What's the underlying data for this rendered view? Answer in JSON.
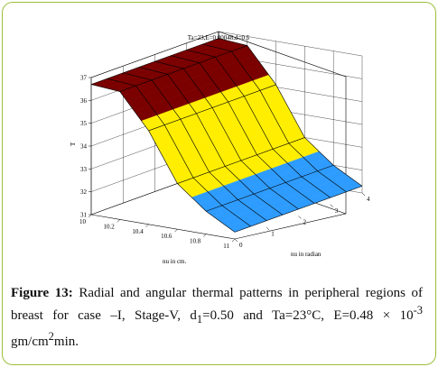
{
  "chart_data": {
    "type": "surface3d",
    "title": "Ta=23,E=0.00048,d=0.5",
    "zlabel": "T",
    "xlabel": "nu in cm.",
    "ylabel": "nu in radian",
    "x_ticks": [
      "10",
      "10.2",
      "10.4",
      "10.6",
      "10.8",
      "11"
    ],
    "y_ticks": [
      "0",
      "1",
      "2",
      "3",
      "4"
    ],
    "z_ticks": [
      "31",
      "32",
      "33",
      "34",
      "35",
      "36",
      "37"
    ],
    "zlim": [
      31,
      37
    ],
    "x_range": [
      10,
      11
    ],
    "y_range": [
      0,
      4
    ],
    "bands": [
      {
        "color": "#7b0000",
        "label": "36-37"
      },
      {
        "color": "#ffee00",
        "label": "33-35"
      },
      {
        "color": "#2e9cff",
        "label": "31-32"
      }
    ],
    "profile_x": [
      10,
      10.2,
      10.4,
      10.6,
      10.8,
      11
    ],
    "profile_T": [
      36.7,
      36.6,
      35.1,
      33.0,
      32.0,
      31.3
    ]
  },
  "caption": {
    "label": "Figure 13:",
    "text1": " Radial and angular thermal patterns in peripheral regions of breast for case –I, Stage-V, d",
    "sub1": "1",
    "text2": "=0.50 and Ta=23°C, E=0.48 × 10",
    "sup1": "-3",
    "text3": " gm/cm",
    "sup2": "2",
    "text4": "min."
  }
}
